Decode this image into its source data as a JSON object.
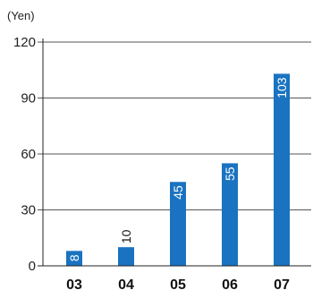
{
  "chart_data": {
    "type": "bar",
    "unit_label": "(Yen)",
    "categories": [
      "03",
      "04",
      "05",
      "06",
      "07"
    ],
    "values": [
      8,
      10,
      45,
      55,
      103
    ],
    "data_labels": [
      "8",
      "10",
      "45",
      "55",
      "103"
    ],
    "yticks": [
      "0",
      "30",
      "60",
      "90",
      "120"
    ],
    "ylim": [
      0,
      120
    ],
    "grid": true,
    "colors": {
      "bar": "#1a73c0",
      "grid": "#555555",
      "axis": "#222222",
      "label_inside": "#ffffff",
      "label_outside": "#111111"
    }
  }
}
